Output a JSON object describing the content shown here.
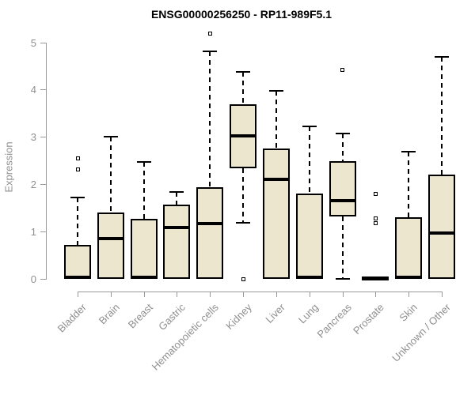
{
  "title": "ENSG00000256250 - RP11-989F5.1",
  "chart_data": {
    "type": "boxplot",
    "title": "ENSG00000256250 - RP11-989F5.1",
    "xlabel": "",
    "ylabel": "Expression",
    "ylim": [
      0,
      5
    ],
    "yticks": [
      0,
      1,
      2,
      3,
      4,
      5
    ],
    "grid": false,
    "legend": "none",
    "categories": [
      "Bladder",
      "Brain",
      "Breast",
      "Gastric",
      "Hematopoietic cells",
      "Kidney",
      "Liver",
      "Lung",
      "Pancreas",
      "Prostate",
      "Skin",
      "Unknown / Other"
    ],
    "boxes": [
      {
        "label": "Bladder",
        "whisker_low": 0,
        "q1": 0,
        "median": 0.03,
        "q3": 0.72,
        "whisker_high": 1.72,
        "outliers": [
          2.32,
          2.55
        ]
      },
      {
        "label": "Brain",
        "whisker_low": 0,
        "q1": 0,
        "median": 0.85,
        "q3": 1.4,
        "whisker_high": 3.0,
        "outliers": []
      },
      {
        "label": "Breast",
        "whisker_low": 0,
        "q1": 0,
        "median": 0.03,
        "q3": 1.27,
        "whisker_high": 2.47,
        "outliers": []
      },
      {
        "label": "Gastric",
        "whisker_low": 0,
        "q1": 0,
        "median": 1.08,
        "q3": 1.57,
        "whisker_high": 1.84,
        "outliers": []
      },
      {
        "label": "Hematopoietic cells",
        "whisker_low": 0,
        "q1": 0,
        "median": 1.17,
        "q3": 1.94,
        "whisker_high": 4.81,
        "outliers": [
          5.19
        ]
      },
      {
        "label": "Kidney",
        "whisker_low": 1.19,
        "q1": 2.34,
        "median": 3.02,
        "q3": 3.69,
        "whisker_high": 4.38,
        "outliers": [
          0.0
        ]
      },
      {
        "label": "Liver",
        "whisker_low": 0,
        "q1": 0,
        "median": 2.1,
        "q3": 2.75,
        "whisker_high": 3.97,
        "outliers": []
      },
      {
        "label": "Lung",
        "whisker_low": 0,
        "q1": 0,
        "median": 0.03,
        "q3": 1.8,
        "whisker_high": 3.22,
        "outliers": []
      },
      {
        "label": "Pancreas",
        "whisker_low": 0,
        "q1": 1.32,
        "median": 1.65,
        "q3": 2.48,
        "whisker_high": 3.07,
        "outliers": [
          4.42
        ]
      },
      {
        "label": "Prostate",
        "whisker_low": 0,
        "q1": 0,
        "median": 0.02,
        "q3": 0.04,
        "whisker_high": 0.04,
        "outliers": [
          1.18,
          1.28,
          1.8
        ]
      },
      {
        "label": "Skin",
        "whisker_low": 0,
        "q1": 0,
        "median": 0.03,
        "q3": 1.3,
        "whisker_high": 2.69,
        "outliers": []
      },
      {
        "label": "Unknown / Other",
        "whisker_low": 0,
        "q1": 0,
        "median": 0.97,
        "q3": 2.2,
        "whisker_high": 4.69,
        "outliers": []
      }
    ],
    "colors": {
      "box_fill": "#ece6cf",
      "box_border": "#000000",
      "median": "#000000",
      "axis": "#999999",
      "tick_text": "#8f8f8f",
      "title_text": "#000000",
      "background": "#ffffff"
    }
  }
}
